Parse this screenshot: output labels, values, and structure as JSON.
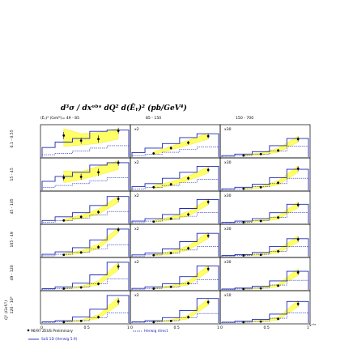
{
  "chart_data": {
    "type": "bar",
    "title": "d³σ / dxᵒᵇˢ dQ² d(Ēᵧ)²  (pb/GeV⁴)",
    "xlabel": "xᵒᵇˢ",
    "ylabel": "Q² (GeV²)",
    "x_ticks": [
      "0",
      "0.5",
      "1"
    ],
    "xlim": [
      0,
      1
    ],
    "column_headers": [
      "(Ēᵧ)² (GeV²)= 49 - 85",
      "85 - 150",
      "150 - 700"
    ],
    "row_labels": [
      "0.1 - 0.55",
      "15 - 45",
      "45 - 105",
      "105 - 49",
      "49 - 120",
      "120 - 10⁴"
    ],
    "bin_edges": [
      0,
      0.15,
      0.35,
      0.55,
      0.75,
      1.0
    ],
    "legend": {
      "data": "96/97 ZEUS Preliminary",
      "herwig_direct": "Herwig direct",
      "sas": "SaS 1D (Herwig 5.9)"
    },
    "panels": [
      {
        "row": 0,
        "col": 0,
        "scale": "",
        "ymax": 1,
        "data": [
          0.72,
          0.55,
          0.6,
          0.88
        ],
        "errors": [
          0.12,
          0.1,
          0.12,
          0.1
        ],
        "sas": [
          0.32,
          0.5,
          0.62,
          0.86,
          0.9
        ],
        "direct": [
          0.08,
          0.12,
          0.2,
          0.3,
          0.38
        ],
        "band_lo": [
          0.35,
          0.4,
          0.46,
          0.6
        ],
        "band_hi": [
          0.95,
          0.78,
          0.82,
          0.95
        ]
      },
      {
        "row": 0,
        "col": 1,
        "scale": "x2",
        "ymax": 1,
        "data": [
          0.12,
          0.3,
          0.48,
          0.7
        ],
        "errors": [
          0.04,
          0.05,
          0.06,
          0.08
        ],
        "sas": [
          0.15,
          0.3,
          0.45,
          0.65,
          0.78
        ],
        "direct": [
          0.05,
          0.1,
          0.16,
          0.26,
          0.34
        ],
        "band_lo": [
          0.08,
          0.24,
          0.4,
          0.6
        ],
        "band_hi": [
          0.18,
          0.36,
          0.56,
          0.8
        ]
      },
      {
        "row": 0,
        "col": 2,
        "scale": "x30",
        "ymax": 1,
        "data": [
          0.05,
          0.1,
          0.22,
          0.6
        ],
        "errors": [
          0.02,
          0.03,
          0.05,
          0.08
        ],
        "sas": [
          0.05,
          0.1,
          0.18,
          0.38,
          0.62
        ],
        "direct": [
          0.02,
          0.05,
          0.1,
          0.2,
          0.36
        ],
        "band_lo": [
          0.03,
          0.07,
          0.16,
          0.5
        ],
        "band_hi": [
          0.08,
          0.14,
          0.3,
          0.7
        ]
      },
      {
        "row": 1,
        "col": 0,
        "scale": "",
        "ymax": 1,
        "data": [
          0.42,
          0.45,
          0.6,
          0.92
        ],
        "errors": [
          0.1,
          0.1,
          0.12,
          0.1
        ],
        "sas": [
          0.3,
          0.46,
          0.6,
          0.84,
          0.92
        ],
        "direct": [
          0.1,
          0.16,
          0.22,
          0.32,
          0.42
        ],
        "band_lo": [
          0.25,
          0.36,
          0.5,
          0.7
        ],
        "band_hi": [
          0.65,
          0.62,
          0.8,
          0.98
        ]
      },
      {
        "row": 1,
        "col": 1,
        "scale": "x2",
        "ymax": 1,
        "data": [
          0.1,
          0.2,
          0.4,
          0.68
        ],
        "errors": [
          0.04,
          0.05,
          0.06,
          0.08
        ],
        "sas": [
          0.12,
          0.22,
          0.4,
          0.6,
          0.8
        ],
        "direct": [
          0.04,
          0.1,
          0.16,
          0.26,
          0.36
        ],
        "band_lo": [
          0.06,
          0.15,
          0.32,
          0.58
        ],
        "band_hi": [
          0.16,
          0.28,
          0.48,
          0.78
        ]
      },
      {
        "row": 1,
        "col": 2,
        "scale": "x30",
        "ymax": 1,
        "data": [
          0.05,
          0.1,
          0.25,
          0.72
        ],
        "errors": [
          0.02,
          0.03,
          0.05,
          0.08
        ],
        "sas": [
          0.05,
          0.1,
          0.2,
          0.42,
          0.7
        ],
        "direct": [
          0.02,
          0.05,
          0.12,
          0.22,
          0.4
        ],
        "band_lo": [
          0.03,
          0.07,
          0.18,
          0.6
        ],
        "band_hi": [
          0.08,
          0.14,
          0.32,
          0.82
        ]
      },
      {
        "row": 2,
        "col": 0,
        "scale": "",
        "ymax": 1,
        "data": [
          0.1,
          0.22,
          0.38,
          0.82
        ],
        "errors": [
          0.04,
          0.05,
          0.06,
          0.1
        ],
        "sas": [
          0.1,
          0.22,
          0.36,
          0.6,
          0.9
        ],
        "direct": [
          0.04,
          0.1,
          0.18,
          0.28,
          0.4
        ],
        "band_lo": [
          0.06,
          0.16,
          0.3,
          0.7
        ],
        "band_hi": [
          0.14,
          0.28,
          0.48,
          0.92
        ]
      },
      {
        "row": 2,
        "col": 1,
        "scale": "x2",
        "ymax": 1,
        "data": [
          0.06,
          0.16,
          0.3,
          0.72
        ],
        "errors": [
          0.03,
          0.04,
          0.06,
          0.08
        ],
        "sas": [
          0.08,
          0.16,
          0.3,
          0.5,
          0.8
        ],
        "direct": [
          0.03,
          0.08,
          0.14,
          0.24,
          0.36
        ],
        "band_lo": [
          0.04,
          0.12,
          0.24,
          0.62
        ],
        "band_hi": [
          0.1,
          0.22,
          0.4,
          0.82
        ]
      },
      {
        "row": 2,
        "col": 2,
        "scale": "x30",
        "ymax": 1,
        "data": [
          0.04,
          0.08,
          0.2,
          0.62
        ],
        "errors": [
          0.02,
          0.03,
          0.05,
          0.08
        ],
        "sas": [
          0.04,
          0.08,
          0.16,
          0.36,
          0.64
        ],
        "direct": [
          0.02,
          0.04,
          0.1,
          0.2,
          0.36
        ],
        "band_lo": [
          0.02,
          0.06,
          0.14,
          0.52
        ],
        "band_hi": [
          0.06,
          0.12,
          0.26,
          0.72
        ]
      },
      {
        "row": 3,
        "col": 0,
        "scale": "",
        "ymax": 1,
        "data": [
          0.06,
          0.14,
          0.32,
          0.9
        ],
        "errors": [
          0.03,
          0.04,
          0.06,
          0.08
        ],
        "sas": [
          0.08,
          0.16,
          0.3,
          0.56,
          0.92
        ],
        "direct": [
          0.03,
          0.08,
          0.14,
          0.26,
          0.4
        ],
        "band_lo": [
          0.04,
          0.1,
          0.26,
          0.8
        ],
        "band_hi": [
          0.1,
          0.2,
          0.42,
          0.98
        ]
      },
      {
        "row": 3,
        "col": 1,
        "scale": "x2",
        "ymax": 1,
        "data": [
          0.05,
          0.12,
          0.28,
          0.7
        ],
        "errors": [
          0.02,
          0.04,
          0.05,
          0.08
        ],
        "sas": [
          0.06,
          0.12,
          0.26,
          0.5,
          0.78
        ],
        "direct": [
          0.02,
          0.06,
          0.12,
          0.22,
          0.34
        ],
        "band_lo": [
          0.03,
          0.08,
          0.22,
          0.6
        ],
        "band_hi": [
          0.08,
          0.18,
          0.36,
          0.82
        ]
      },
      {
        "row": 3,
        "col": 2,
        "scale": "x30",
        "ymax": 1,
        "data": [
          0.04,
          0.06,
          0.18,
          0.58
        ],
        "errors": [
          0.02,
          0.03,
          0.05,
          0.08
        ],
        "sas": [
          0.04,
          0.07,
          0.14,
          0.34,
          0.6
        ],
        "direct": [
          0.02,
          0.04,
          0.08,
          0.18,
          0.34
        ],
        "band_lo": [
          0.02,
          0.05,
          0.12,
          0.48
        ],
        "band_hi": [
          0.06,
          0.1,
          0.24,
          0.7
        ]
      },
      {
        "row": 4,
        "col": 0,
        "scale": "",
        "ymax": 1,
        "data": [
          0.04,
          0.08,
          0.2,
          0.78
        ],
        "errors": [
          0.02,
          0.03,
          0.05,
          0.1
        ],
        "sas": [
          0.04,
          0.1,
          0.22,
          0.5,
          0.92
        ],
        "direct": [
          0.02,
          0.05,
          0.1,
          0.2,
          0.36
        ],
        "band_lo": [
          0.03,
          0.06,
          0.16,
          0.66
        ],
        "band_hi": [
          0.06,
          0.12,
          0.3,
          0.92
        ]
      },
      {
        "row": 4,
        "col": 1,
        "scale": "x2",
        "ymax": 1,
        "data": [
          0.04,
          0.1,
          0.22,
          0.7
        ],
        "errors": [
          0.02,
          0.03,
          0.05,
          0.08
        ],
        "sas": [
          0.05,
          0.1,
          0.2,
          0.44,
          0.8
        ],
        "direct": [
          0.02,
          0.05,
          0.1,
          0.2,
          0.34
        ],
        "band_lo": [
          0.03,
          0.07,
          0.16,
          0.6
        ],
        "band_hi": [
          0.06,
          0.14,
          0.3,
          0.82
        ]
      },
      {
        "row": 4,
        "col": 2,
        "scale": "x30",
        "ymax": 1,
        "data": [
          0.03,
          0.05,
          0.14,
          0.58
        ],
        "errors": [
          0.02,
          0.02,
          0.04,
          0.08
        ],
        "sas": [
          0.03,
          0.06,
          0.12,
          0.3,
          0.62
        ],
        "direct": [
          0.01,
          0.03,
          0.06,
          0.16,
          0.32
        ],
        "band_lo": [
          0.02,
          0.04,
          0.1,
          0.48
        ],
        "band_hi": [
          0.05,
          0.08,
          0.2,
          0.7
        ]
      },
      {
        "row": 5,
        "col": 0,
        "scale": "",
        "ymax": 1,
        "data": [
          0.03,
          0.07,
          0.2,
          0.72
        ],
        "errors": [
          0.02,
          0.03,
          0.05,
          0.1
        ],
        "sas": [
          0.04,
          0.08,
          0.2,
          0.46,
          0.92
        ],
        "direct": [
          0.02,
          0.04,
          0.08,
          0.18,
          0.34
        ],
        "band_lo": [
          0.02,
          0.05,
          0.15,
          0.6
        ],
        "band_hi": [
          0.05,
          0.1,
          0.28,
          0.86
        ]
      },
      {
        "row": 5,
        "col": 1,
        "scale": "x2",
        "ymax": 1,
        "data": [
          0.03,
          0.07,
          0.2,
          0.7
        ],
        "errors": [
          0.02,
          0.03,
          0.05,
          0.08
        ],
        "sas": [
          0.04,
          0.08,
          0.18,
          0.42,
          0.82
        ],
        "direct": [
          0.02,
          0.04,
          0.08,
          0.18,
          0.32
        ],
        "band_lo": [
          0.02,
          0.05,
          0.14,
          0.6
        ],
        "band_hi": [
          0.05,
          0.1,
          0.26,
          0.82
        ]
      },
      {
        "row": 5,
        "col": 2,
        "scale": "x10",
        "ymax": 1,
        "data": [
          0.03,
          0.05,
          0.14,
          0.64
        ],
        "errors": [
          0.02,
          0.02,
          0.04,
          0.08
        ],
        "sas": [
          0.03,
          0.06,
          0.12,
          0.3,
          0.72
        ],
        "direct": [
          0.01,
          0.03,
          0.06,
          0.16,
          0.34
        ],
        "band_lo": [
          0.02,
          0.04,
          0.1,
          0.54
        ],
        "band_hi": [
          0.05,
          0.08,
          0.2,
          0.76
        ]
      }
    ]
  },
  "colors": {
    "band": "#ffff66",
    "band_edge": "#e6d800",
    "sas": "#1f2ab8",
    "direct": "#1f2ab8",
    "data": "#000000",
    "frame": "#000000"
  }
}
